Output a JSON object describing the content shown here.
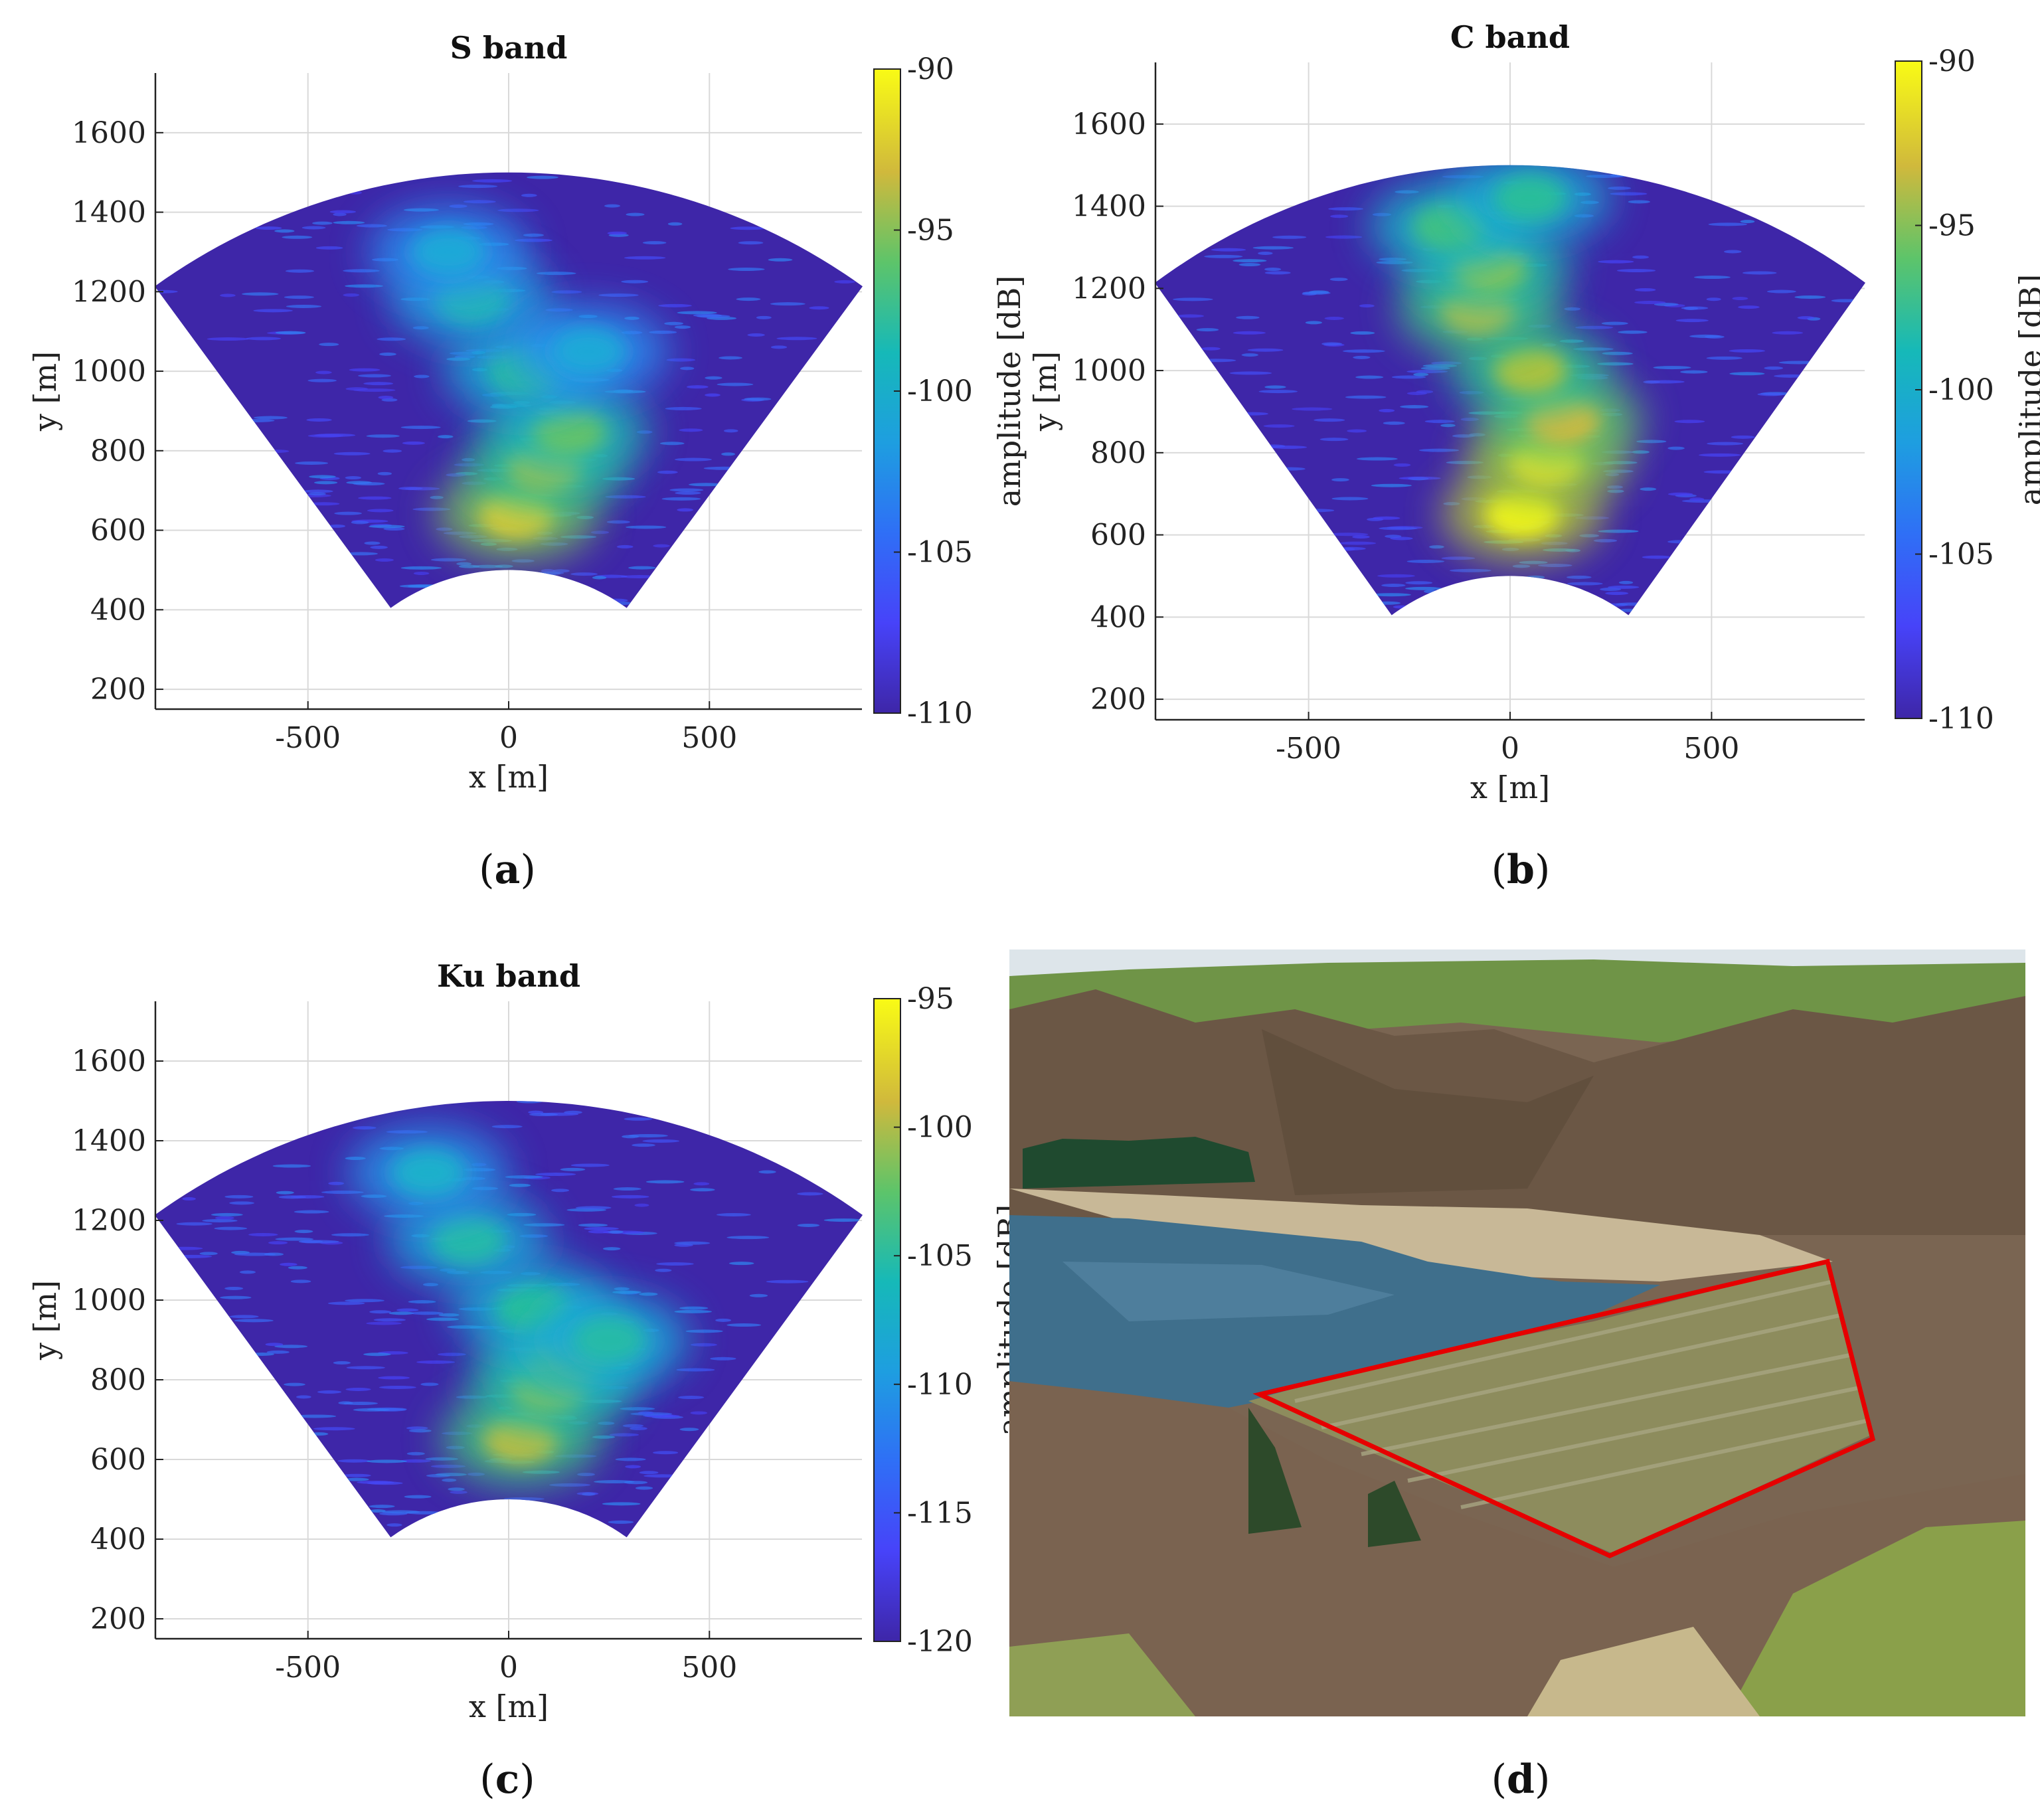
{
  "figure": {
    "panels": [
      {
        "id": "a",
        "title": "S band",
        "caption_letter": "a"
      },
      {
        "id": "b",
        "title": "C band",
        "caption_letter": "b"
      },
      {
        "id": "c",
        "title": "Ku band",
        "caption_letter": "c"
      },
      {
        "id": "d",
        "title": "",
        "caption_letter": "d"
      }
    ]
  },
  "colors": {
    "colormap": [
      "#3e26a8",
      "#4743f9",
      "#2d8ef2",
      "#1ab1d0",
      "#2ec28e",
      "#9fc73e",
      "#ecb833",
      "#f9fb15"
    ],
    "background_fill": "#3e26a8",
    "grid": "#d9d9d9",
    "outline": "#e60000"
  },
  "chart_data": [
    {
      "type": "heatmap",
      "title": "S band",
      "xlabel": "x [m]",
      "ylabel": "y [m]",
      "xlim": [
        -880,
        880
      ],
      "ylim": [
        150,
        1750
      ],
      "xticks": [
        -500,
        0,
        500
      ],
      "xtick_labels": [
        "-500",
        "0",
        "500"
      ],
      "yticks": [
        200,
        400,
        600,
        800,
        1000,
        1200,
        1400,
        1600
      ],
      "ytick_labels": [
        "200",
        "400",
        "600",
        "800",
        "1000",
        "1200",
        "1400",
        "1600"
      ],
      "grid": true,
      "sector": {
        "r_min": 500,
        "r_max": 1500,
        "half_angle_deg": 36
      },
      "colorbar": {
        "label": "amplitude [dB]",
        "range": [
          -110,
          -90
        ],
        "ticks": [
          -110,
          -105,
          -100,
          -95,
          -90
        ],
        "tick_labels": [
          "-110",
          "-105",
          "-100",
          "-95",
          "-90"
        ]
      },
      "hotspots": [
        {
          "x": 20,
          "y": 640,
          "amp": -92
        },
        {
          "x": 90,
          "y": 760,
          "amp": -95
        },
        {
          "x": 150,
          "y": 850,
          "amp": -97
        },
        {
          "x": 40,
          "y": 1000,
          "amp": -99
        },
        {
          "x": -90,
          "y": 1180,
          "amp": -100
        },
        {
          "x": -150,
          "y": 1300,
          "amp": -102
        },
        {
          "x": 200,
          "y": 1050,
          "amp": -102
        }
      ]
    },
    {
      "type": "heatmap",
      "title": "C band",
      "xlabel": "x [m]",
      "ylabel": "y [m]",
      "xlim": [
        -880,
        880
      ],
      "ylim": [
        150,
        1750
      ],
      "xticks": [
        -500,
        0,
        500
      ],
      "xtick_labels": [
        "-500",
        "0",
        "500"
      ],
      "yticks": [
        200,
        400,
        600,
        800,
        1000,
        1200,
        1400,
        1600
      ],
      "ytick_labels": [
        "200",
        "400",
        "600",
        "800",
        "1000",
        "1200",
        "1400",
        "1600"
      ],
      "grid": true,
      "sector": {
        "r_min": 500,
        "r_max": 1500,
        "half_angle_deg": 36
      },
      "colorbar": {
        "label": "amplitude [dB]",
        "range": [
          -110,
          -90
        ],
        "ticks": [
          -110,
          -105,
          -100,
          -95,
          -90
        ],
        "tick_labels": [
          "-110",
          "-105",
          "-100",
          "-95",
          "-90"
        ]
      },
      "hotspots": [
        {
          "x": 30,
          "y": 650,
          "amp": -90
        },
        {
          "x": 90,
          "y": 780,
          "amp": -91
        },
        {
          "x": 130,
          "y": 880,
          "amp": -93
        },
        {
          "x": 50,
          "y": 1000,
          "amp": -95
        },
        {
          "x": -80,
          "y": 1150,
          "amp": -94
        },
        {
          "x": -50,
          "y": 1250,
          "amp": -96
        },
        {
          "x": -150,
          "y": 1350,
          "amp": -98
        },
        {
          "x": 50,
          "y": 1420,
          "amp": -99
        }
      ]
    },
    {
      "type": "heatmap",
      "title": "Ku band",
      "xlabel": "x [m]",
      "ylabel": "y [m]",
      "xlim": [
        -880,
        880
      ],
      "ylim": [
        150,
        1750
      ],
      "xticks": [
        -500,
        0,
        500
      ],
      "xtick_labels": [
        "-500",
        "0",
        "500"
      ],
      "yticks": [
        200,
        400,
        600,
        800,
        1000,
        1200,
        1400,
        1600
      ],
      "ytick_labels": [
        "200",
        "400",
        "600",
        "800",
        "1000",
        "1200",
        "1400",
        "1600"
      ],
      "grid": true,
      "sector": {
        "r_min": 500,
        "r_max": 1500,
        "half_angle_deg": 36
      },
      "colorbar": {
        "label": "amplitude [dB]",
        "range": [
          -120,
          -95
        ],
        "ticks": [
          -120,
          -115,
          -110,
          -105,
          -100,
          -95
        ],
        "tick_labels": [
          "-120",
          "-115",
          "-110",
          "-105",
          "-100",
          "-95"
        ]
      },
      "hotspots": [
        {
          "x": 30,
          "y": 650,
          "amp": -100
        },
        {
          "x": 100,
          "y": 780,
          "amp": -102
        },
        {
          "x": 150,
          "y": 860,
          "amp": -104
        },
        {
          "x": 60,
          "y": 980,
          "amp": -106
        },
        {
          "x": -100,
          "y": 1150,
          "amp": -107
        },
        {
          "x": -200,
          "y": 1320,
          "amp": -109
        },
        {
          "x": 250,
          "y": 900,
          "amp": -107
        }
      ]
    }
  ],
  "photo": {
    "description_colors": {
      "sky": "#dfe6ea",
      "hills": "#6d5a46",
      "green_fields": "#6f9447",
      "water": "#3f6f8c",
      "shore": "#c9b898",
      "slope": "#8b8a5c",
      "shrubs": "#7b6350",
      "grass": "#8aa04a"
    }
  }
}
